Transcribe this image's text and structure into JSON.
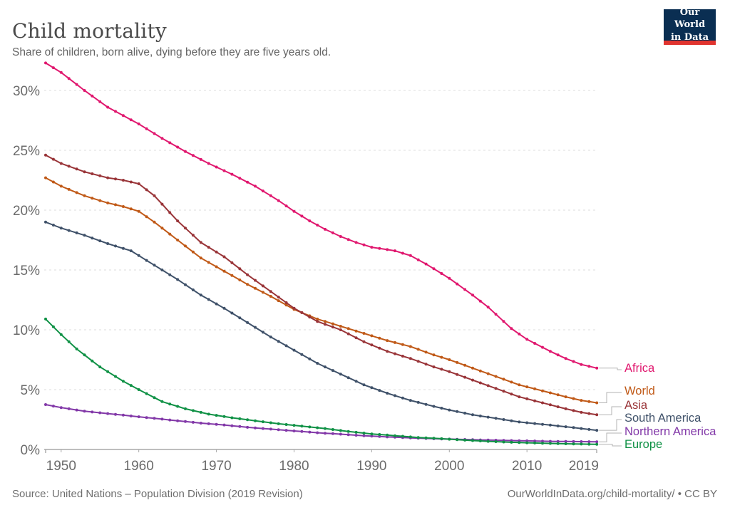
{
  "header": {
    "title": "Child mortality",
    "subtitle": "Share of children, born alive, dying before they are five years old."
  },
  "logo": {
    "line1": "Our World",
    "line2": "in Data",
    "bg_color": "#0a2e52",
    "bar_color": "#e0342f",
    "text_color": "#ffffff"
  },
  "chart_data": {
    "type": "line",
    "title": "Child mortality",
    "subtitle": "Share of children, born alive, dying before they are five years old.",
    "unit": "%",
    "xlim": [
      1948,
      2019
    ],
    "ylim": [
      0,
      32.5
    ],
    "grid": "dashed-horizontal",
    "legend_position": "right",
    "markers": "circle",
    "x": {
      "ticks": [
        1950,
        1960,
        1970,
        1980,
        1990,
        2000,
        2010,
        2019
      ]
    },
    "y": {
      "ticks": [
        0,
        5,
        10,
        15,
        20,
        25,
        30
      ],
      "tick_suffix": "%"
    },
    "series": [
      {
        "name": "Africa",
        "color": "#e0176e",
        "points": [
          [
            1948,
            32.3
          ],
          [
            1950,
            31.5
          ],
          [
            1953,
            30.0
          ],
          [
            1956,
            28.6
          ],
          [
            1958,
            27.9
          ],
          [
            1960,
            27.2
          ],
          [
            1963,
            26.0
          ],
          [
            1966,
            24.9
          ],
          [
            1969,
            23.9
          ],
          [
            1972,
            23.0
          ],
          [
            1975,
            22.0
          ],
          [
            1978,
            20.8
          ],
          [
            1980,
            19.9
          ],
          [
            1982,
            19.1
          ],
          [
            1984,
            18.4
          ],
          [
            1986,
            17.8
          ],
          [
            1988,
            17.3
          ],
          [
            1990,
            16.9
          ],
          [
            1993,
            16.6
          ],
          [
            1995,
            16.2
          ],
          [
            1997,
            15.5
          ],
          [
            2000,
            14.3
          ],
          [
            2003,
            12.9
          ],
          [
            2005,
            11.9
          ],
          [
            2008,
            10.1
          ],
          [
            2010,
            9.2
          ],
          [
            2013,
            8.2
          ],
          [
            2015,
            7.6
          ],
          [
            2017,
            7.1
          ],
          [
            2019,
            6.8
          ]
        ]
      },
      {
        "name": "World",
        "color": "#c05917",
        "points": [
          [
            1948,
            22.7
          ],
          [
            1950,
            22.0
          ],
          [
            1953,
            21.2
          ],
          [
            1956,
            20.6
          ],
          [
            1958,
            20.3
          ],
          [
            1960,
            19.9
          ],
          [
            1962,
            19.0
          ],
          [
            1965,
            17.5
          ],
          [
            1968,
            16.0
          ],
          [
            1971,
            14.9
          ],
          [
            1974,
            13.8
          ],
          [
            1977,
            12.8
          ],
          [
            1980,
            11.7
          ],
          [
            1983,
            10.9
          ],
          [
            1986,
            10.3
          ],
          [
            1989,
            9.7
          ],
          [
            1992,
            9.1
          ],
          [
            1995,
            8.6
          ],
          [
            1998,
            7.9
          ],
          [
            2000,
            7.5
          ],
          [
            2003,
            6.8
          ],
          [
            2006,
            6.1
          ],
          [
            2009,
            5.4
          ],
          [
            2012,
            4.9
          ],
          [
            2015,
            4.4
          ],
          [
            2017,
            4.1
          ],
          [
            2019,
            3.9
          ]
        ]
      },
      {
        "name": "Asia",
        "color": "#993438",
        "points": [
          [
            1948,
            24.6
          ],
          [
            1950,
            23.9
          ],
          [
            1953,
            23.2
          ],
          [
            1956,
            22.7
          ],
          [
            1958,
            22.5
          ],
          [
            1960,
            22.2
          ],
          [
            1962,
            21.2
          ],
          [
            1965,
            19.1
          ],
          [
            1968,
            17.3
          ],
          [
            1971,
            16.1
          ],
          [
            1974,
            14.6
          ],
          [
            1977,
            13.2
          ],
          [
            1980,
            11.8
          ],
          [
            1983,
            10.7
          ],
          [
            1986,
            10.0
          ],
          [
            1989,
            9.0
          ],
          [
            1992,
            8.2
          ],
          [
            1995,
            7.6
          ],
          [
            1998,
            6.9
          ],
          [
            2000,
            6.5
          ],
          [
            2003,
            5.8
          ],
          [
            2006,
            5.1
          ],
          [
            2009,
            4.4
          ],
          [
            2012,
            3.9
          ],
          [
            2015,
            3.4
          ],
          [
            2017,
            3.1
          ],
          [
            2019,
            2.9
          ]
        ]
      },
      {
        "name": "South America",
        "color": "#3f5169",
        "points": [
          [
            1948,
            19.0
          ],
          [
            1950,
            18.5
          ],
          [
            1953,
            17.9
          ],
          [
            1956,
            17.2
          ],
          [
            1959,
            16.6
          ],
          [
            1962,
            15.4
          ],
          [
            1965,
            14.2
          ],
          [
            1968,
            12.9
          ],
          [
            1971,
            11.8
          ],
          [
            1974,
            10.6
          ],
          [
            1977,
            9.4
          ],
          [
            1980,
            8.3
          ],
          [
            1983,
            7.2
          ],
          [
            1986,
            6.3
          ],
          [
            1989,
            5.4
          ],
          [
            1992,
            4.7
          ],
          [
            1995,
            4.1
          ],
          [
            1998,
            3.6
          ],
          [
            2000,
            3.3
          ],
          [
            2003,
            2.9
          ],
          [
            2006,
            2.6
          ],
          [
            2009,
            2.3
          ],
          [
            2012,
            2.1
          ],
          [
            2015,
            1.9
          ],
          [
            2017,
            1.75
          ],
          [
            2019,
            1.6
          ]
        ]
      },
      {
        "name": "Northern America",
        "color": "#8238a8",
        "points": [
          [
            1948,
            3.75
          ],
          [
            1950,
            3.5
          ],
          [
            1953,
            3.2
          ],
          [
            1956,
            3.0
          ],
          [
            1959,
            2.8
          ],
          [
            1962,
            2.6
          ],
          [
            1965,
            2.4
          ],
          [
            1968,
            2.2
          ],
          [
            1971,
            2.05
          ],
          [
            1974,
            1.85
          ],
          [
            1977,
            1.7
          ],
          [
            1980,
            1.55
          ],
          [
            1983,
            1.4
          ],
          [
            1986,
            1.28
          ],
          [
            1989,
            1.15
          ],
          [
            1992,
            1.05
          ],
          [
            1995,
            0.97
          ],
          [
            1998,
            0.9
          ],
          [
            2001,
            0.85
          ],
          [
            2004,
            0.8
          ],
          [
            2007,
            0.76
          ],
          [
            2010,
            0.72
          ],
          [
            2013,
            0.68
          ],
          [
            2016,
            0.66
          ],
          [
            2019,
            0.64
          ]
        ]
      },
      {
        "name": "Europe",
        "color": "#0f9145",
        "points": [
          [
            1948,
            10.9
          ],
          [
            1950,
            9.6
          ],
          [
            1952,
            8.4
          ],
          [
            1955,
            6.9
          ],
          [
            1958,
            5.7
          ],
          [
            1960,
            5.0
          ],
          [
            1963,
            4.0
          ],
          [
            1966,
            3.4
          ],
          [
            1969,
            2.95
          ],
          [
            1972,
            2.65
          ],
          [
            1975,
            2.4
          ],
          [
            1978,
            2.15
          ],
          [
            1981,
            1.95
          ],
          [
            1984,
            1.75
          ],
          [
            1987,
            1.5
          ],
          [
            1990,
            1.3
          ],
          [
            1993,
            1.15
          ],
          [
            1996,
            1.0
          ],
          [
            1999,
            0.9
          ],
          [
            2002,
            0.78
          ],
          [
            2005,
            0.68
          ],
          [
            2008,
            0.6
          ],
          [
            2011,
            0.54
          ],
          [
            2014,
            0.49
          ],
          [
            2017,
            0.45
          ],
          [
            2019,
            0.43
          ]
        ]
      }
    ]
  },
  "footer": {
    "source": "Source: United Nations – Population Division (2019 Revision)",
    "license": "OurWorldInData.org/child-mortality/ • CC BY"
  }
}
